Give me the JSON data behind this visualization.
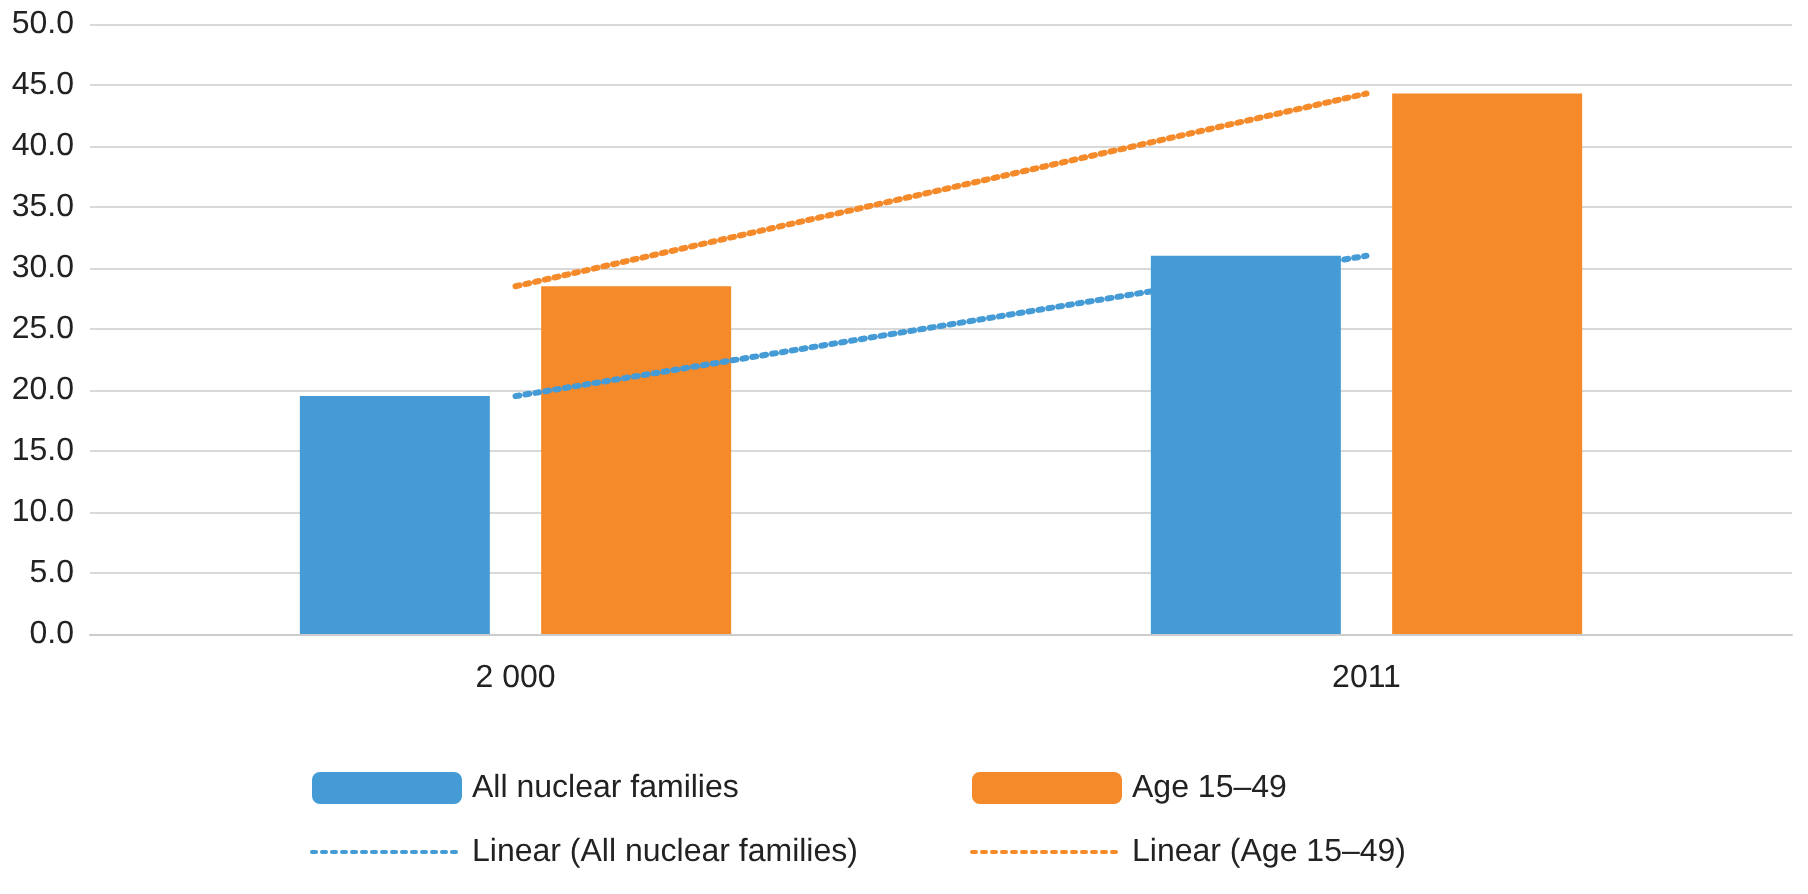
{
  "chart_data": {
    "type": "bar",
    "categories": [
      "2 000",
      "2011"
    ],
    "series": [
      {
        "name": "All nuclear families",
        "color": "#459bd5",
        "values": [
          19.5,
          31.0
        ]
      },
      {
        "name": "Age 15–49",
        "color": "#f58a2a",
        "values": [
          28.5,
          44.3
        ]
      },
      {
        "name": "Linear (All nuclear families)",
        "type": "line",
        "color": "#459bd5",
        "values": [
          19.5,
          31.0
        ],
        "line_style": "dotted",
        "marker": "none"
      },
      {
        "name": "Linear (Age 15–49)",
        "type": "line",
        "color": "#f58a2a",
        "values": [
          28.5,
          44.3
        ],
        "line_style": "dotted",
        "marker": "none"
      }
    ],
    "ylim": [
      0,
      50
    ],
    "yticks": [
      {
        "value": 0,
        "label": "0.0"
      },
      {
        "value": 5,
        "label": "5.0"
      },
      {
        "value": 10,
        "label": "10.0"
      },
      {
        "value": 15,
        "label": "15.0"
      },
      {
        "value": 20,
        "label": "20.0"
      },
      {
        "value": 25,
        "label": "25.0"
      },
      {
        "value": 30,
        "label": "30.0"
      },
      {
        "value": 35,
        "label": "35.0"
      },
      {
        "value": 40,
        "label": "40.0"
      },
      {
        "value": 45,
        "label": "45.0"
      },
      {
        "value": 50,
        "label": "50.0"
      }
    ],
    "grid": "y",
    "legend": "bottom"
  }
}
